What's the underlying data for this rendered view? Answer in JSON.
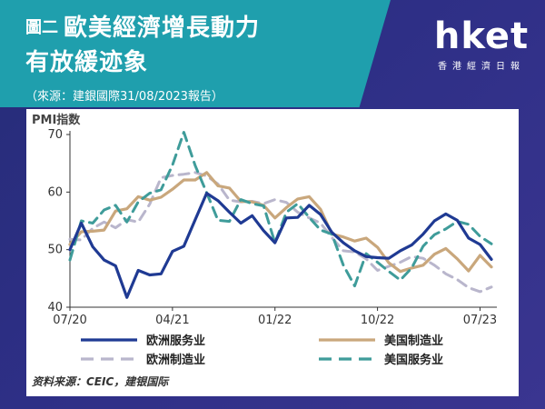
{
  "header": {
    "figure_label": "圖二",
    "title_line1": "歐美經濟增長動力",
    "title_line2": "有放緩迹象",
    "source_note": "（來源：建銀國際31/08/2023報告）"
  },
  "logo": {
    "wordmark": "hket",
    "subtitle": "香港經濟日報"
  },
  "colors": {
    "banner": "#1f9fad",
    "background": "#2b2e7a",
    "eu_services": "#1f3a93",
    "us_manufacturing": "#c9a77c",
    "eu_manufacturing": "#b9b6cc",
    "us_services": "#3f9c9a"
  },
  "chart_data": {
    "type": "line",
    "ylabel": "PMI指数",
    "xlabel": "",
    "ylim": [
      40,
      70
    ],
    "yticks": [
      40,
      50,
      60,
      70
    ],
    "x_tick_labels": [
      "07/20",
      "04/21",
      "01/22",
      "10/22",
      "07/23"
    ],
    "x": [
      "07/20",
      "08/20",
      "09/20",
      "10/20",
      "11/20",
      "12/20",
      "01/21",
      "02/21",
      "03/21",
      "04/21",
      "05/21",
      "06/21",
      "07/21",
      "08/21",
      "09/21",
      "10/21",
      "11/21",
      "12/21",
      "01/22",
      "02/22",
      "03/22",
      "04/22",
      "05/22",
      "06/22",
      "07/22",
      "08/22",
      "09/22",
      "10/22",
      "11/22",
      "12/22",
      "01/23",
      "02/23",
      "03/23",
      "04/23",
      "05/23",
      "06/23",
      "07/23",
      "08/23"
    ],
    "series": [
      {
        "name": "欧洲服务业",
        "style": "solid",
        "values": [
          50.0,
          54.6,
          50.5,
          48.2,
          47.2,
          41.7,
          46.4,
          45.6,
          45.8,
          49.7,
          50.6,
          55.2,
          59.8,
          58.5,
          56.5,
          54.6,
          55.9,
          53.3,
          51.2,
          55.5,
          55.6,
          57.7,
          56.1,
          53.0,
          51.2,
          49.8,
          48.8,
          48.6,
          48.5,
          49.8,
          50.8,
          52.7,
          55.0,
          56.2,
          55.1,
          52.0,
          50.9,
          48.3
        ]
      },
      {
        "name": "美国制造业",
        "style": "solid",
        "values": [
          50.9,
          53.1,
          53.2,
          53.4,
          56.7,
          57.1,
          59.2,
          58.6,
          59.1,
          60.5,
          62.1,
          62.1,
          63.4,
          61.1,
          60.7,
          58.4,
          58.3,
          57.7,
          55.5,
          57.3,
          58.8,
          59.2,
          57.0,
          52.7,
          52.2,
          51.5,
          52.0,
          50.4,
          47.7,
          46.2,
          46.8,
          47.3,
          49.2,
          50.2,
          48.4,
          46.3,
          49.0,
          47.0
        ]
      },
      {
        "name": "欧洲制造业",
        "style": "dashed",
        "values": [
          51.8,
          51.7,
          53.7,
          54.8,
          53.8,
          55.2,
          54.8,
          57.9,
          62.5,
          62.9,
          63.1,
          63.4,
          62.8,
          61.4,
          58.6,
          58.3,
          58.4,
          58.0,
          58.7,
          58.2,
          56.5,
          55.5,
          54.6,
          52.1,
          49.8,
          49.6,
          48.4,
          46.4,
          47.1,
          47.8,
          48.8,
          48.5,
          47.3,
          45.8,
          44.8,
          43.4,
          42.7,
          43.5
        ]
      },
      {
        "name": "美国服务业",
        "style": "dashed",
        "values": [
          48.2,
          55.0,
          54.6,
          56.9,
          57.7,
          54.8,
          58.3,
          59.8,
          60.4,
          64.7,
          70.4,
          64.6,
          59.9,
          55.1,
          54.9,
          58.7,
          58.0,
          57.6,
          51.2,
          56.5,
          58.0,
          55.6,
          53.4,
          52.7,
          47.3,
          43.7,
          49.3,
          47.8,
          46.2,
          44.7,
          46.8,
          50.6,
          52.6,
          53.6,
          54.9,
          54.4,
          52.3,
          51.0
        ]
      }
    ],
    "legend_position": "bottom",
    "grid": false,
    "source_note": "资料来源：CEIC，建银国际"
  }
}
